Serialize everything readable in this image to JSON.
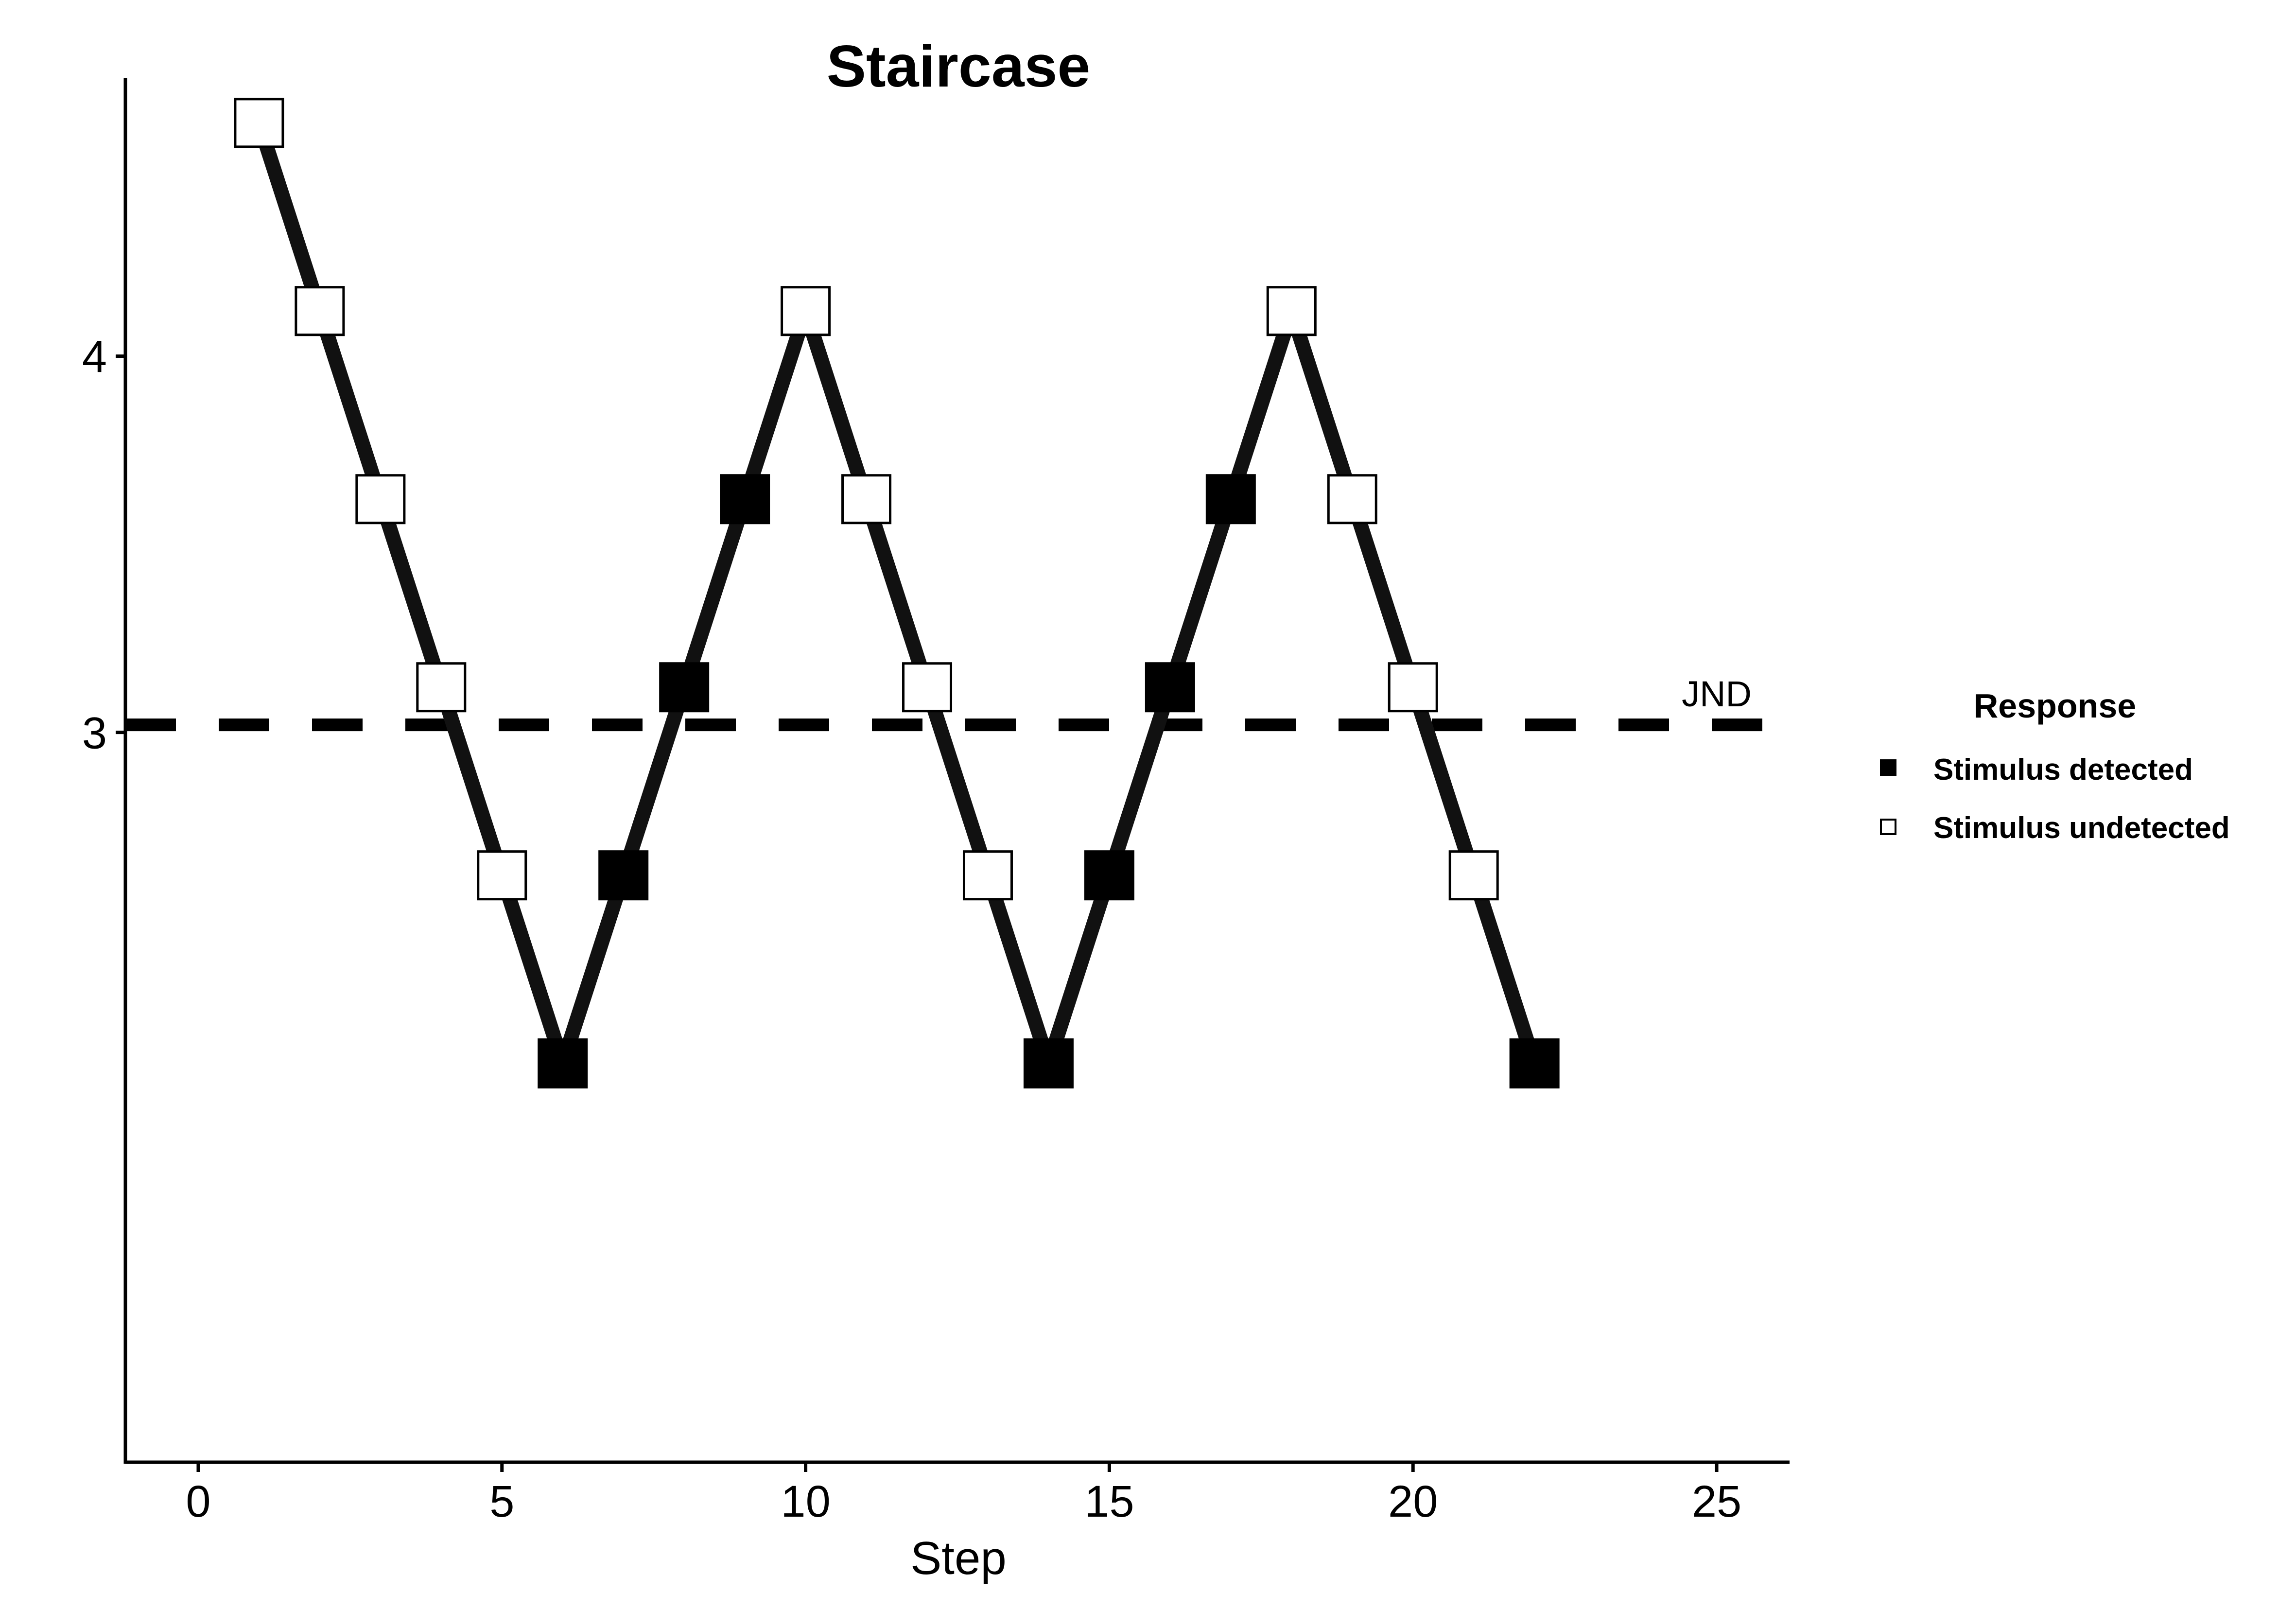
{
  "chart_data": {
    "type": "line",
    "title": "Staircase",
    "xlabel": "Step",
    "ylabel": "",
    "xlim": [
      -1.2,
      26.2
    ],
    "ylim": [
      1.06,
      4.74
    ],
    "x_ticks": [
      0,
      5,
      10,
      15,
      20,
      25
    ],
    "y_ticks": [
      3,
      4
    ],
    "grid": false,
    "series": [
      {
        "x": [
          1,
          2,
          3,
          4,
          5,
          6,
          7,
          8,
          9,
          10,
          11,
          12,
          13,
          14,
          15,
          16,
          17,
          18,
          19,
          20,
          21,
          22
        ],
        "y": [
          4.62,
          4.12,
          3.62,
          3.12,
          2.62,
          2.12,
          2.62,
          3.12,
          3.62,
          4.12,
          3.62,
          3.12,
          2.62,
          2.12,
          2.62,
          3.12,
          3.62,
          4.12,
          3.62,
          3.12,
          2.62,
          2.12
        ],
        "response": [
          "undetected",
          "undetected",
          "undetected",
          "undetected",
          "undetected",
          "detected",
          "detected",
          "detected",
          "detected",
          "undetected",
          "undetected",
          "undetected",
          "undetected",
          "detected",
          "detected",
          "detected",
          "detected",
          "undetected",
          "undetected",
          "undetected",
          "undetected",
          "detected"
        ]
      }
    ],
    "reference_line": {
      "y": 3.02,
      "label": "JND",
      "style": "dashed"
    },
    "legend": {
      "title": "Response",
      "position": "right",
      "items": [
        {
          "key": "detected",
          "label": "Stimulus detected",
          "fill": "#000000"
        },
        {
          "key": "undetected",
          "label": "Stimulus undetected",
          "fill": "#ffffff"
        }
      ]
    },
    "colors": {
      "line": "#111111",
      "marker_stroke": "#000000",
      "axis": "#000000"
    }
  }
}
